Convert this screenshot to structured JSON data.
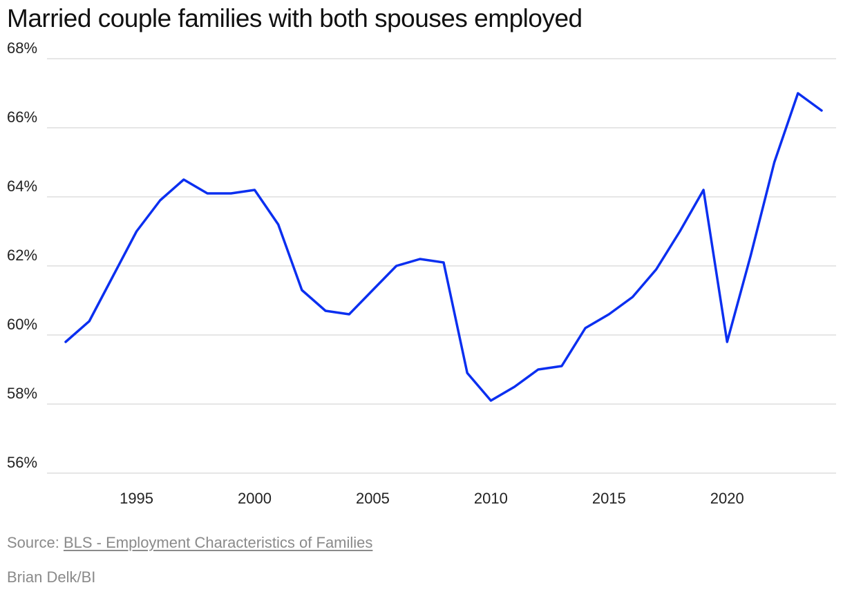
{
  "chart_data": {
    "type": "line",
    "title": "Married couple families with both spouses employed",
    "xlabel": "",
    "ylabel": "",
    "xlim": [
      1992,
      2024
    ],
    "ylim": [
      56,
      68
    ],
    "y_ticks": [
      56,
      58,
      60,
      62,
      64,
      66,
      68
    ],
    "y_tick_labels": [
      "56%",
      "58%",
      "60%",
      "62%",
      "64%",
      "66%",
      "68%"
    ],
    "x_ticks": [
      1995,
      2000,
      2005,
      2010,
      2015,
      2020
    ],
    "x_tick_labels": [
      "1995",
      "2000",
      "2005",
      "2010",
      "2015",
      "2020"
    ],
    "grid": true,
    "line_color": "#0b2ff0",
    "series": [
      {
        "x": [
          1992,
          1993,
          1994,
          1995,
          1996,
          1997,
          1998,
          1999,
          2000,
          2001,
          2002,
          2003,
          2004,
          2005,
          2006,
          2007,
          2008,
          2009,
          2010,
          2011,
          2012,
          2013,
          2014,
          2015,
          2016,
          2017,
          2018,
          2019,
          2020,
          2021,
          2022,
          2023,
          2024
        ],
        "values": [
          59.8,
          60.4,
          61.7,
          63.0,
          63.9,
          64.5,
          64.1,
          64.1,
          64.2,
          63.2,
          61.3,
          60.7,
          60.6,
          61.3,
          62.0,
          62.2,
          62.1,
          58.9,
          58.1,
          58.5,
          59.0,
          59.1,
          60.2,
          60.6,
          61.1,
          61.9,
          63.0,
          64.2,
          59.8,
          62.3,
          65.0,
          67.0,
          66.5
        ]
      }
    ]
  },
  "footer": {
    "source_prefix": "Source: ",
    "source_link": "BLS - Employment Characteristics of Families",
    "credit": "Brian Delk/BI"
  }
}
